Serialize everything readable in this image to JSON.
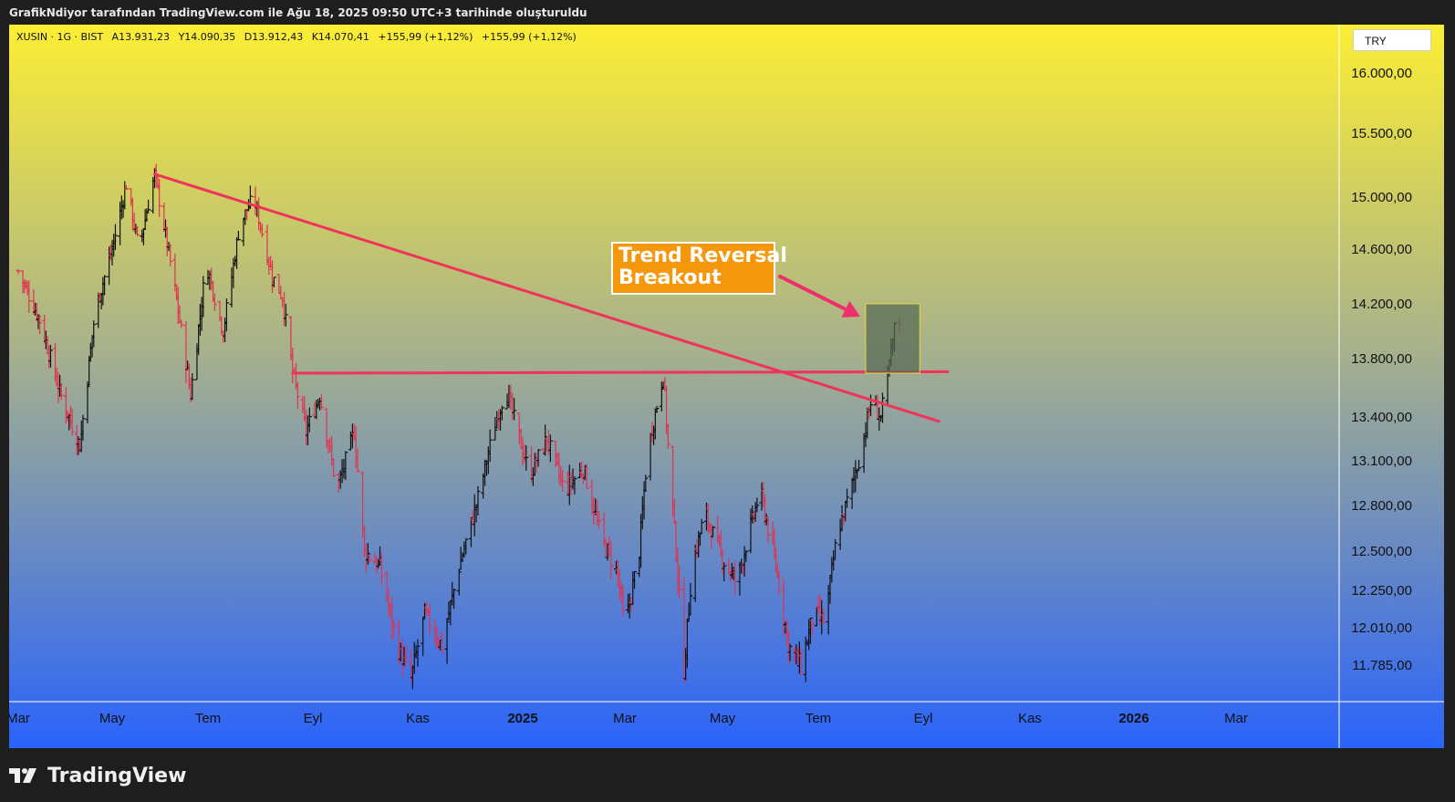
{
  "caption": "GrafikNdiyor tarafından TradingView.com ile Ağu 18, 2025 09:50 UTC+3 tarihinde oluşturuldu",
  "symbol": {
    "name": "XUSIN · 1G · BIST",
    "open": "A13.931,23",
    "high": "Y14.090,35",
    "low": "D13.912,43",
    "close": "K14.070,41",
    "change1": "+155,99 (+1,12%)",
    "change2": "+155,99 (+1,12%)"
  },
  "currency": "TRY",
  "annotation": {
    "line1": "Trend Reversal",
    "line2": "Breakout"
  },
  "brand": "TradingView",
  "colors": {
    "background_top": "#fcee34",
    "background_bottom": "#2a63fb",
    "up_bar": "#111111",
    "down_bar": "#e0334f",
    "trendline": "#f0335a",
    "arrow": "#ef2e6c",
    "box_fill": "#566956",
    "box_border": "#e8d838",
    "annotation_bg": "#f5970c"
  },
  "chart_data": {
    "type": "ohlc",
    "title": "XUSIN · 1G · BIST",
    "y_ticks": [
      "16.000,00",
      "15.500,00",
      "15.000,00",
      "14.600,00",
      "14.200,00",
      "13.800,00",
      "13.400,00",
      "13.100,00",
      "12.800,00",
      "12.500,00",
      "12.250,00",
      "12.010,00",
      "11.785,00"
    ],
    "y_tick_values": [
      16000,
      15500,
      15000,
      14600,
      14200,
      13800,
      13400,
      13100,
      12800,
      12500,
      12250,
      12010,
      11785
    ],
    "x_ticks": [
      {
        "label": "Mar",
        "date": "2024-03-01",
        "bold": false
      },
      {
        "label": "May",
        "date": "2024-05-01",
        "bold": false
      },
      {
        "label": "Tem",
        "date": "2024-07-01",
        "bold": false
      },
      {
        "label": "Eyl",
        "date": "2024-09-01",
        "bold": false
      },
      {
        "label": "Kas",
        "date": "2024-11-01",
        "bold": false
      },
      {
        "label": "2025",
        "date": "2025-01-01",
        "bold": true
      },
      {
        "label": "Mar",
        "date": "2025-03-01",
        "bold": false
      },
      {
        "label": "May",
        "date": "2025-05-01",
        "bold": false
      },
      {
        "label": "Tem",
        "date": "2025-07-01",
        "bold": false
      },
      {
        "label": "Eyl",
        "date": "2025-09-01",
        "bold": false
      },
      {
        "label": "Kas",
        "date": "2025-11-01",
        "bold": false
      },
      {
        "label": "2026",
        "date": "2026-01-01",
        "bold": true
      },
      {
        "label": "Mar",
        "date": "2026-03-01",
        "bold": false
      }
    ],
    "price_path": [
      [
        "2024-03-01",
        14440
      ],
      [
        "2024-03-15",
        14080
      ],
      [
        "2024-03-28",
        13570
      ],
      [
        "2024-04-10",
        13200
      ],
      [
        "2024-04-20",
        14150
      ],
      [
        "2024-05-01",
        14600
      ],
      [
        "2024-05-10",
        15100
      ],
      [
        "2024-05-18",
        14600
      ],
      [
        "2024-05-28",
        15180
      ],
      [
        "2024-06-10",
        14300
      ],
      [
        "2024-06-20",
        13550
      ],
      [
        "2024-06-30",
        14500
      ],
      [
        "2024-07-10",
        14000
      ],
      [
        "2024-07-20",
        14800
      ],
      [
        "2024-07-28",
        15000
      ],
      [
        "2024-08-08",
        14400
      ],
      [
        "2024-08-14",
        14250
      ],
      [
        "2024-08-20",
        13700
      ],
      [
        "2024-08-28",
        13300
      ],
      [
        "2024-09-05",
        13550
      ],
      [
        "2024-09-15",
        12900
      ],
      [
        "2024-09-25",
        13300
      ],
      [
        "2024-10-01",
        12500
      ],
      [
        "2024-10-10",
        12400
      ],
      [
        "2024-10-20",
        11900
      ],
      [
        "2024-10-28",
        11700
      ],
      [
        "2024-11-05",
        12100
      ],
      [
        "2024-11-15",
        11900
      ],
      [
        "2024-11-25",
        12400
      ],
      [
        "2024-12-05",
        12800
      ],
      [
        "2024-12-15",
        13300
      ],
      [
        "2024-12-22",
        13600
      ],
      [
        "2025-01-05",
        13000
      ],
      [
        "2025-01-15",
        13250
      ],
      [
        "2025-01-25",
        12900
      ],
      [
        "2025-02-05",
        13050
      ],
      [
        "2025-02-15",
        12600
      ],
      [
        "2025-02-25",
        12350
      ],
      [
        "2025-03-01",
        12000
      ],
      [
        "2025-03-10",
        12500
      ],
      [
        "2025-03-15",
        13150
      ],
      [
        "2025-03-25",
        13700
      ],
      [
        "2025-03-28",
        13200
      ],
      [
        "2025-04-02",
        12500
      ],
      [
        "2025-04-07",
        11750
      ],
      [
        "2025-04-12",
        12400
      ],
      [
        "2025-04-20",
        12750
      ],
      [
        "2025-05-01",
        12450
      ],
      [
        "2025-05-10",
        12300
      ],
      [
        "2025-05-20",
        12700
      ],
      [
        "2025-05-25",
        12900
      ],
      [
        "2025-06-05",
        12350
      ],
      [
        "2025-06-12",
        11900
      ],
      [
        "2025-06-20",
        11780
      ],
      [
        "2025-06-28",
        12100
      ],
      [
        "2025-07-05",
        12050
      ],
      [
        "2025-07-12",
        12600
      ],
      [
        "2025-07-20",
        12900
      ],
      [
        "2025-07-26",
        13150
      ],
      [
        "2025-08-01",
        13500
      ],
      [
        "2025-08-07",
        13400
      ],
      [
        "2025-08-12",
        13750
      ],
      [
        "2025-08-16",
        14100
      ],
      [
        "2025-08-18",
        14070
      ]
    ],
    "trendlines": [
      {
        "kind": "descending",
        "start": [
          "2024-05-28",
          15180
        ],
        "end": [
          "2025-09-10",
          13370
        ]
      },
      {
        "kind": "horizontal",
        "start": [
          "2024-08-20",
          13700
        ],
        "end": [
          "2025-09-15",
          13710
        ]
      }
    ],
    "highlight_box": {
      "x0": "2025-07-29",
      "x1": "2025-08-30",
      "y0": 13700,
      "y1": 14200
    }
  }
}
